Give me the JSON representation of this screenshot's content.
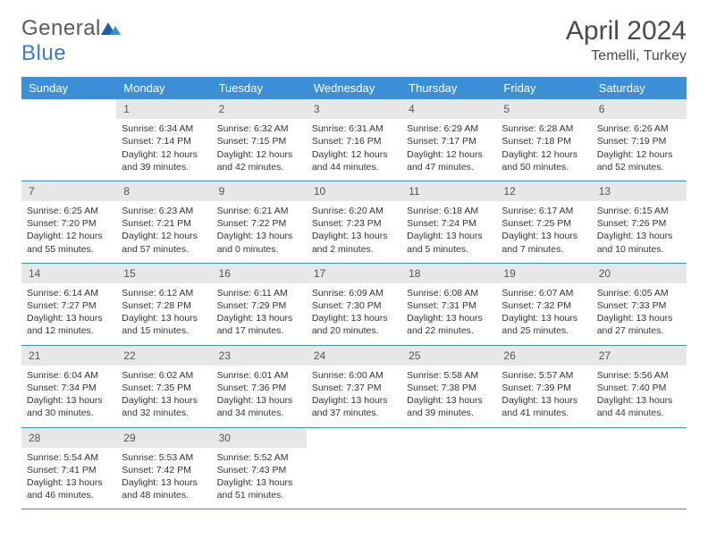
{
  "brand": {
    "part1": "General",
    "part2": "Blue"
  },
  "title": "April 2024",
  "location": "Temelli, Turkey",
  "day_headers": [
    "Sunday",
    "Monday",
    "Tuesday",
    "Wednesday",
    "Thursday",
    "Friday",
    "Saturday"
  ],
  "colors": {
    "header_bg": "#3b8fd6",
    "header_text": "#ffffff",
    "daynum_bg": "#e7e7e7",
    "logo_blue": "#3b7dc4",
    "logo_gray": "#5a5a5a",
    "cell_border": "#3b8fd6"
  },
  "first_weekday_offset": 1,
  "days": [
    {
      "n": 1,
      "sr": "6:34 AM",
      "ss": "7:14 PM",
      "dl": "12 hours and 39 minutes."
    },
    {
      "n": 2,
      "sr": "6:32 AM",
      "ss": "7:15 PM",
      "dl": "12 hours and 42 minutes."
    },
    {
      "n": 3,
      "sr": "6:31 AM",
      "ss": "7:16 PM",
      "dl": "12 hours and 44 minutes."
    },
    {
      "n": 4,
      "sr": "6:29 AM",
      "ss": "7:17 PM",
      "dl": "12 hours and 47 minutes."
    },
    {
      "n": 5,
      "sr": "6:28 AM",
      "ss": "7:18 PM",
      "dl": "12 hours and 50 minutes."
    },
    {
      "n": 6,
      "sr": "6:26 AM",
      "ss": "7:19 PM",
      "dl": "12 hours and 52 minutes."
    },
    {
      "n": 7,
      "sr": "6:25 AM",
      "ss": "7:20 PM",
      "dl": "12 hours and 55 minutes."
    },
    {
      "n": 8,
      "sr": "6:23 AM",
      "ss": "7:21 PM",
      "dl": "12 hours and 57 minutes."
    },
    {
      "n": 9,
      "sr": "6:21 AM",
      "ss": "7:22 PM",
      "dl": "13 hours and 0 minutes."
    },
    {
      "n": 10,
      "sr": "6:20 AM",
      "ss": "7:23 PM",
      "dl": "13 hours and 2 minutes."
    },
    {
      "n": 11,
      "sr": "6:18 AM",
      "ss": "7:24 PM",
      "dl": "13 hours and 5 minutes."
    },
    {
      "n": 12,
      "sr": "6:17 AM",
      "ss": "7:25 PM",
      "dl": "13 hours and 7 minutes."
    },
    {
      "n": 13,
      "sr": "6:15 AM",
      "ss": "7:26 PM",
      "dl": "13 hours and 10 minutes."
    },
    {
      "n": 14,
      "sr": "6:14 AM",
      "ss": "7:27 PM",
      "dl": "13 hours and 12 minutes."
    },
    {
      "n": 15,
      "sr": "6:12 AM",
      "ss": "7:28 PM",
      "dl": "13 hours and 15 minutes."
    },
    {
      "n": 16,
      "sr": "6:11 AM",
      "ss": "7:29 PM",
      "dl": "13 hours and 17 minutes."
    },
    {
      "n": 17,
      "sr": "6:09 AM",
      "ss": "7:30 PM",
      "dl": "13 hours and 20 minutes."
    },
    {
      "n": 18,
      "sr": "6:08 AM",
      "ss": "7:31 PM",
      "dl": "13 hours and 22 minutes."
    },
    {
      "n": 19,
      "sr": "6:07 AM",
      "ss": "7:32 PM",
      "dl": "13 hours and 25 minutes."
    },
    {
      "n": 20,
      "sr": "6:05 AM",
      "ss": "7:33 PM",
      "dl": "13 hours and 27 minutes."
    },
    {
      "n": 21,
      "sr": "6:04 AM",
      "ss": "7:34 PM",
      "dl": "13 hours and 30 minutes."
    },
    {
      "n": 22,
      "sr": "6:02 AM",
      "ss": "7:35 PM",
      "dl": "13 hours and 32 minutes."
    },
    {
      "n": 23,
      "sr": "6:01 AM",
      "ss": "7:36 PM",
      "dl": "13 hours and 34 minutes."
    },
    {
      "n": 24,
      "sr": "6:00 AM",
      "ss": "7:37 PM",
      "dl": "13 hours and 37 minutes."
    },
    {
      "n": 25,
      "sr": "5:58 AM",
      "ss": "7:38 PM",
      "dl": "13 hours and 39 minutes."
    },
    {
      "n": 26,
      "sr": "5:57 AM",
      "ss": "7:39 PM",
      "dl": "13 hours and 41 minutes."
    },
    {
      "n": 27,
      "sr": "5:56 AM",
      "ss": "7:40 PM",
      "dl": "13 hours and 44 minutes."
    },
    {
      "n": 28,
      "sr": "5:54 AM",
      "ss": "7:41 PM",
      "dl": "13 hours and 46 minutes."
    },
    {
      "n": 29,
      "sr": "5:53 AM",
      "ss": "7:42 PM",
      "dl": "13 hours and 48 minutes."
    },
    {
      "n": 30,
      "sr": "5:52 AM",
      "ss": "7:43 PM",
      "dl": "13 hours and 51 minutes."
    }
  ],
  "labels": {
    "sunrise": "Sunrise:",
    "sunset": "Sunset:",
    "daylight": "Daylight:"
  }
}
